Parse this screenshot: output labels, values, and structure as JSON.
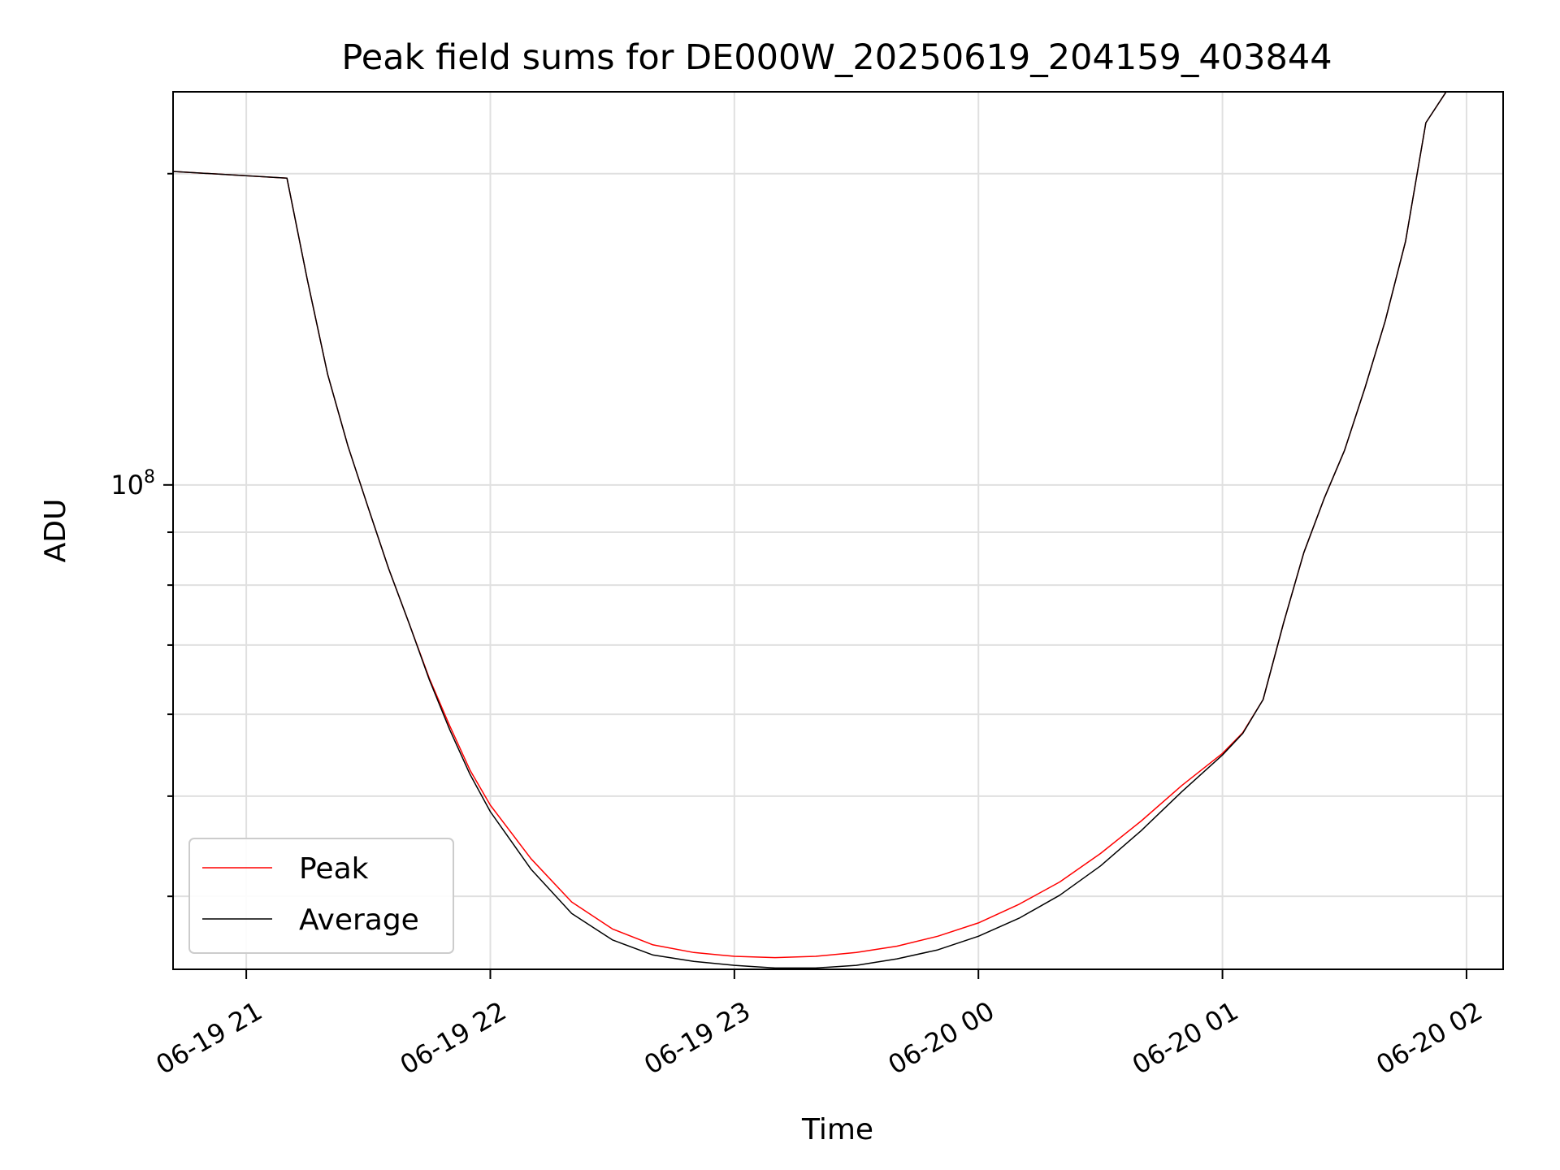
{
  "chart_data": {
    "type": "line",
    "title": "Peak field sums for DE000W_20250619_204159_403844",
    "xlabel": "Time",
    "ylabel": "ADU",
    "yscale": "log",
    "grid": true,
    "legend_position": "lower-left",
    "xlim": [
      "2025-06-19 20:42",
      "2025-06-20 02:09"
    ],
    "ylim": [
      34000000,
      240000000
    ],
    "x_ticks": [
      "06-19 21",
      "06-19 22",
      "06-19 23",
      "06-20 00",
      "06-20 01",
      "06-20 02"
    ],
    "x_tick_times": [
      "2025-06-19 21:00",
      "2025-06-19 22:00",
      "2025-06-19 23:00",
      "2025-06-20 00:00",
      "2025-06-20 01:00",
      "2025-06-20 02:00"
    ],
    "y_major_tick": {
      "label": "10",
      "exponent": "8",
      "value": 100000000
    },
    "y_minor_ticks": [
      40000000,
      50000000,
      60000000,
      70000000,
      80000000,
      90000000,
      200000000
    ],
    "series": [
      {
        "name": "Peak",
        "color": "#ff0000",
        "x": [
          "2025-06-19 20:42",
          "2025-06-19 21:10",
          "2025-06-19 21:15",
          "2025-06-19 21:20",
          "2025-06-19 21:25",
          "2025-06-19 21:30",
          "2025-06-19 21:35",
          "2025-06-19 21:40",
          "2025-06-19 21:45",
          "2025-06-19 21:50",
          "2025-06-19 21:55",
          "2025-06-19 22:00",
          "2025-06-19 22:10",
          "2025-06-19 22:20",
          "2025-06-19 22:30",
          "2025-06-19 22:40",
          "2025-06-19 22:50",
          "2025-06-19 23:00",
          "2025-06-19 23:10",
          "2025-06-19 23:20",
          "2025-06-19 23:30",
          "2025-06-19 23:40",
          "2025-06-19 23:50",
          "2025-06-20 00:00",
          "2025-06-20 00:10",
          "2025-06-20 00:20",
          "2025-06-20 00:30",
          "2025-06-20 00:40",
          "2025-06-20 00:50",
          "2025-06-20 01:00",
          "2025-06-20 01:05",
          "2025-06-20 01:10",
          "2025-06-20 01:15",
          "2025-06-20 01:20",
          "2025-06-20 01:25",
          "2025-06-20 01:30",
          "2025-06-20 01:35",
          "2025-06-20 01:40",
          "2025-06-20 01:45",
          "2025-06-20 01:50",
          "2025-06-20 01:55"
        ],
        "values": [
          201000000,
          198000000,
          158000000,
          128000000,
          109000000,
          95000000,
          83000000,
          73500000,
          65000000,
          58500000,
          53000000,
          49000000,
          43500000,
          39500000,
          37200000,
          35900000,
          35300000,
          35000000,
          34900000,
          35000000,
          35300000,
          35800000,
          36600000,
          37700000,
          39300000,
          41300000,
          44000000,
          47300000,
          51200000,
          55000000,
          57600000,
          62000000,
          73500000,
          86000000,
          97000000,
          108000000,
          124000000,
          144000000,
          172000000,
          224000000,
          240000000
        ]
      },
      {
        "name": "Average",
        "color": "#000000",
        "x": [
          "2025-06-19 20:42",
          "2025-06-19 21:10",
          "2025-06-19 21:15",
          "2025-06-19 21:20",
          "2025-06-19 21:25",
          "2025-06-19 21:30",
          "2025-06-19 21:35",
          "2025-06-19 21:40",
          "2025-06-19 21:45",
          "2025-06-19 21:50",
          "2025-06-19 21:55",
          "2025-06-19 22:00",
          "2025-06-19 22:10",
          "2025-06-19 22:20",
          "2025-06-19 22:30",
          "2025-06-19 22:40",
          "2025-06-19 22:50",
          "2025-06-19 23:00",
          "2025-06-19 23:10",
          "2025-06-19 23:20",
          "2025-06-19 23:30",
          "2025-06-19 23:40",
          "2025-06-19 23:50",
          "2025-06-20 00:00",
          "2025-06-20 00:10",
          "2025-06-20 00:20",
          "2025-06-20 00:30",
          "2025-06-20 00:40",
          "2025-06-20 00:50",
          "2025-06-20 01:00",
          "2025-06-20 01:05",
          "2025-06-20 01:10",
          "2025-06-20 01:15",
          "2025-06-20 01:20",
          "2025-06-20 01:25",
          "2025-06-20 01:30",
          "2025-06-20 01:35",
          "2025-06-20 01:40",
          "2025-06-20 01:45",
          "2025-06-20 01:50",
          "2025-06-20 01:55"
        ],
        "values": [
          201000000,
          198000000,
          158000000,
          128000000,
          109000000,
          95000000,
          83000000,
          73500000,
          64800000,
          58000000,
          52500000,
          48300000,
          42500000,
          38500000,
          36300000,
          35100000,
          34600000,
          34300000,
          34100000,
          34100000,
          34300000,
          34800000,
          35500000,
          36600000,
          38100000,
          40100000,
          42800000,
          46300000,
          50500000,
          54800000,
          57500000,
          62000000,
          73500000,
          86000000,
          97000000,
          108000000,
          124000000,
          144000000,
          172000000,
          224000000,
          240000000
        ]
      }
    ]
  }
}
